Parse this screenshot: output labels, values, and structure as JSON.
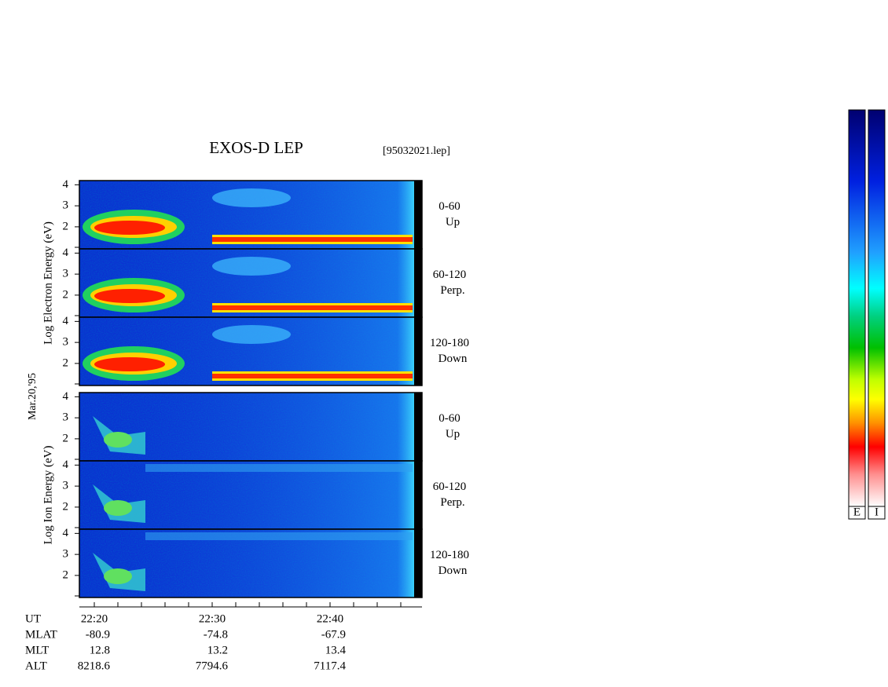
{
  "title": "EXOS-D LEP",
  "file": "[95032021.lep]",
  "date": "Mar.20,'95",
  "groups": [
    {
      "ylabel": "Log  Electron  Energy (eV)",
      "panels": [
        {
          "range": "0-60",
          "dir": "Up"
        },
        {
          "range": "60-120",
          "dir": "Perp."
        },
        {
          "range": "120-180",
          "dir": "Down"
        }
      ]
    },
    {
      "ylabel": "Log  Ion  Energy (eV)",
      "panels": [
        {
          "range": "0-60",
          "dir": "Up"
        },
        {
          "range": "60-120",
          "dir": "Perp."
        },
        {
          "range": "120-180",
          "dir": "Down"
        }
      ]
    }
  ],
  "ylim": [
    0.95,
    4.2
  ],
  "yticks": [
    2,
    3,
    4
  ],
  "ephemeris": [
    {
      "label": "UT",
      "values": [
        "22:20",
        "22:30",
        "22:40"
      ]
    },
    {
      "label": "MLAT",
      "values": [
        -80.9,
        -74.8,
        -67.9
      ]
    },
    {
      "label": "MLT",
      "values": [
        12.8,
        13.2,
        13.4
      ]
    },
    {
      "label": "ALT",
      "values": [
        8218.6,
        7794.6,
        7117.4
      ]
    }
  ],
  "colorbars": [
    "E",
    "I"
  ]
}
